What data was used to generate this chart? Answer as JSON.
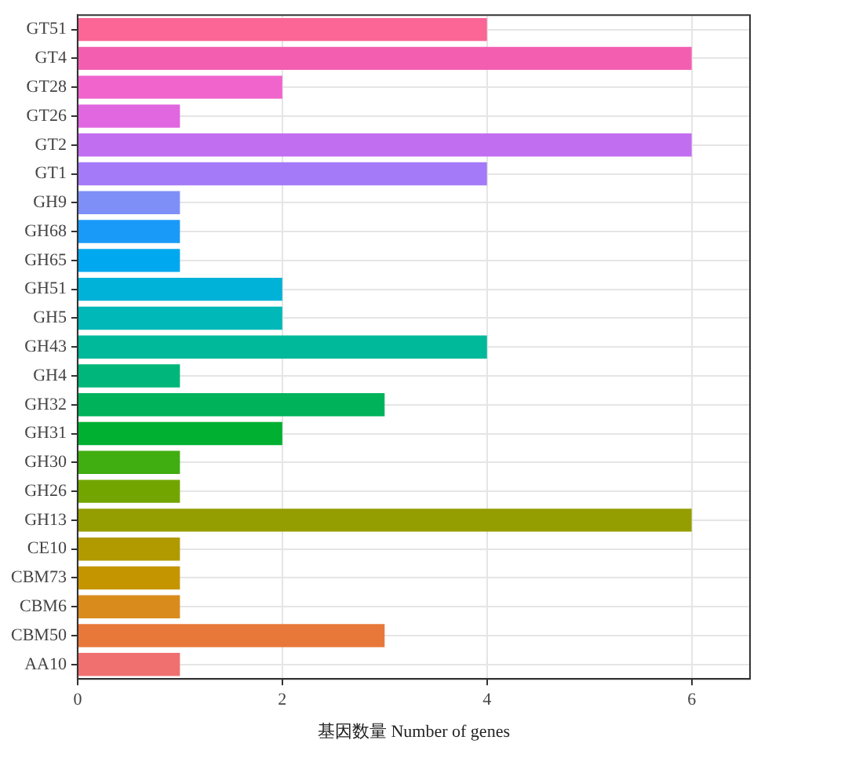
{
  "chart_data": {
    "type": "bar",
    "orientation": "horizontal",
    "xlabel": "基因数量 Number of genes",
    "categories": [
      "GT51",
      "GT4",
      "GT28",
      "GT26",
      "GT2",
      "GT1",
      "GH9",
      "GH68",
      "GH65",
      "GH51",
      "GH5",
      "GH43",
      "GH4",
      "GH32",
      "GH31",
      "GH30",
      "GH26",
      "GH13",
      "CE10",
      "CBM73",
      "CBM6",
      "CBM50",
      "AA10"
    ],
    "values": [
      4,
      6,
      2,
      1,
      6,
      4,
      1,
      1,
      1,
      2,
      2,
      4,
      1,
      3,
      2,
      1,
      1,
      6,
      1,
      1,
      1,
      3,
      1
    ],
    "colors": [
      "#fb6696",
      "#f45eb0",
      "#f064cc",
      "#e067e0",
      "#c26ef0",
      "#a47af8",
      "#7e8ff8",
      "#1a9af8",
      "#00a8ef",
      "#00b2d8",
      "#00b8b8",
      "#00b89a",
      "#00b67a",
      "#00b35a",
      "#00b030",
      "#40ad10",
      "#72a500",
      "#959e00",
      "#b09a00",
      "#c59500",
      "#d98b1c",
      "#e8783a",
      "#f07070"
    ],
    "xlim": [
      0,
      6.57
    ],
    "xticks": [
      0,
      2,
      4,
      6
    ],
    "grid": true,
    "legend": false
  }
}
